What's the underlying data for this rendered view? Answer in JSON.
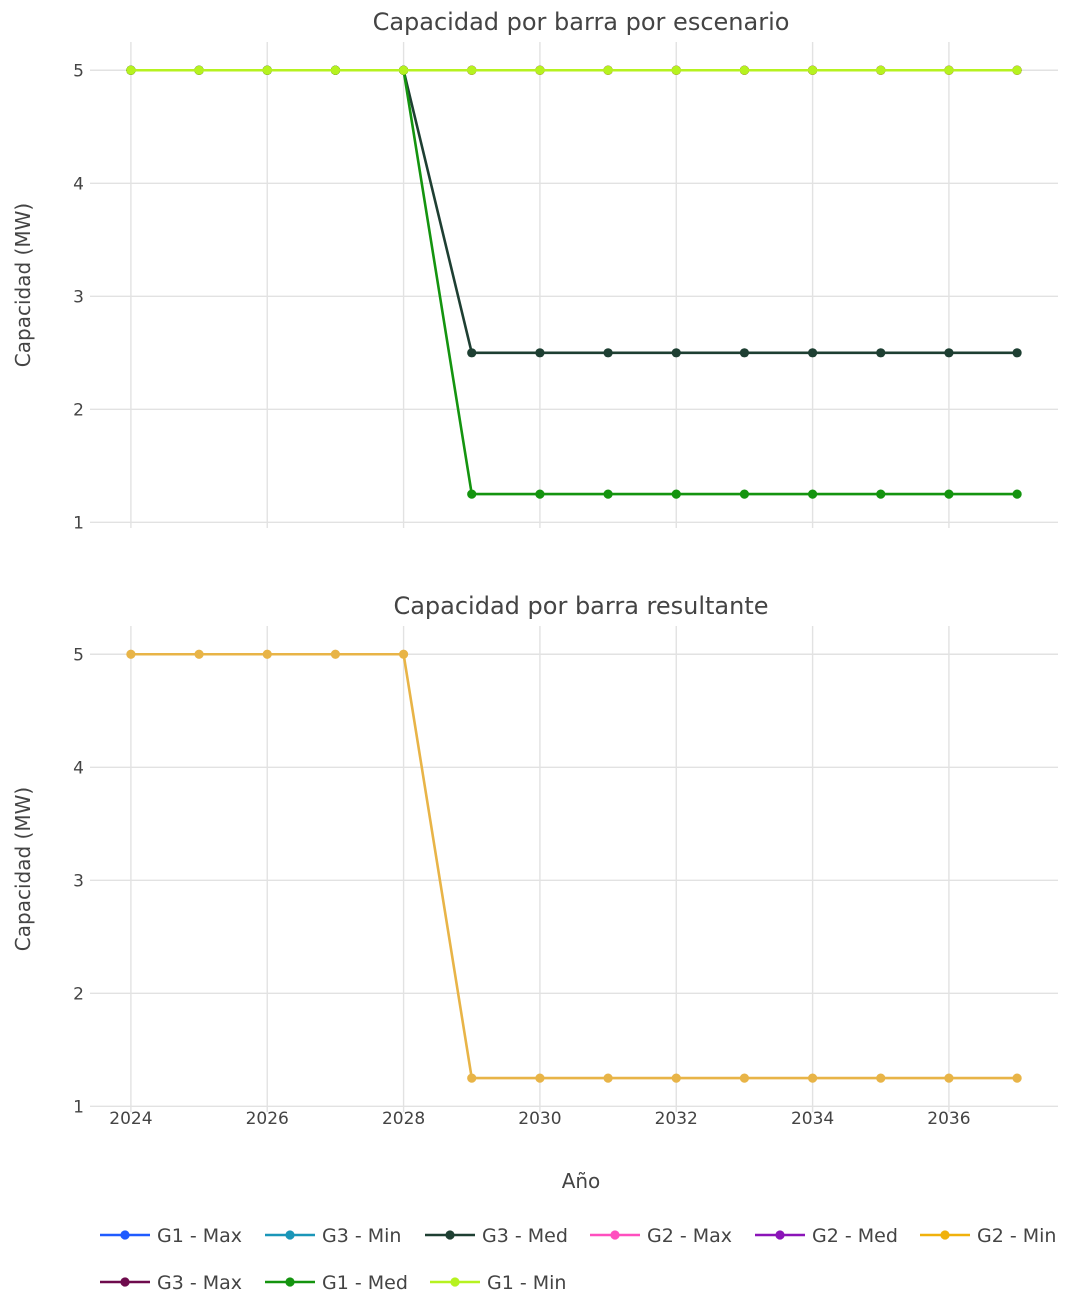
{
  "xlabel": "Año",
  "chart_data": [
    {
      "type": "line",
      "title": "Capacidad por barra por escenario",
      "xlabel": "",
      "ylabel": "Capacidad (MW)",
      "x": [
        2024,
        2025,
        2026,
        2027,
        2028,
        2029,
        2030,
        2031,
        2032,
        2033,
        2034,
        2035,
        2036,
        2037
      ],
      "xlim": [
        2023.4,
        2037.6
      ],
      "ylim": [
        0.95,
        5.25
      ],
      "xticks": [
        2024,
        2026,
        2028,
        2030,
        2032,
        2034,
        2036
      ],
      "yticks": [
        1,
        2,
        3,
        4,
        5
      ],
      "grid": true,
      "series": [
        {
          "name": "G1 - Max",
          "color": "#1f5bff",
          "values": [
            5,
            5,
            5,
            5,
            5,
            5,
            5,
            5,
            5,
            5,
            5,
            5,
            5,
            5
          ]
        },
        {
          "name": "G3 - Min",
          "color": "#1a96b8",
          "values": [
            5,
            5,
            5,
            5,
            5,
            5,
            5,
            5,
            5,
            5,
            5,
            5,
            5,
            5
          ]
        },
        {
          "name": "G2 - Max",
          "color": "#ff4fbf",
          "values": [
            5,
            5,
            5,
            5,
            5,
            5,
            5,
            5,
            5,
            5,
            5,
            5,
            5,
            5
          ]
        },
        {
          "name": "G2 - Med",
          "color": "#8b14b8",
          "values": [
            5,
            5,
            5,
            5,
            5,
            5,
            5,
            5,
            5,
            5,
            5,
            5,
            5,
            5
          ]
        },
        {
          "name": "G2 - Min",
          "color": "#f0b10c",
          "values": [
            5,
            5,
            5,
            5,
            5,
            5,
            5,
            5,
            5,
            5,
            5,
            5,
            5,
            5
          ]
        },
        {
          "name": "G3 - Max",
          "color": "#6e0b4d",
          "values": [
            5,
            5,
            5,
            5,
            5,
            5,
            5,
            5,
            5,
            5,
            5,
            5,
            5,
            5
          ]
        },
        {
          "name": "G3 - Med",
          "color": "#1e3f32",
          "values": [
            5,
            5,
            5,
            5,
            5,
            2.5,
            2.5,
            2.5,
            2.5,
            2.5,
            2.5,
            2.5,
            2.5,
            2.5
          ]
        },
        {
          "name": "G1 - Med",
          "color": "#14940f",
          "values": [
            5,
            5,
            5,
            5,
            5,
            1.25,
            1.25,
            1.25,
            1.25,
            1.25,
            1.25,
            1.25,
            1.25,
            1.25
          ]
        },
        {
          "name": "G1 - Min",
          "color": "#b6f21f",
          "values": [
            5,
            5,
            5,
            5,
            5,
            5,
            5,
            5,
            5,
            5,
            5,
            5,
            5,
            5
          ]
        }
      ]
    },
    {
      "type": "line",
      "title": "Capacidad por barra resultante",
      "xlabel": "Año",
      "ylabel": "Capacidad (MW)",
      "x": [
        2024,
        2025,
        2026,
        2027,
        2028,
        2029,
        2030,
        2031,
        2032,
        2033,
        2034,
        2035,
        2036,
        2037
      ],
      "xlim": [
        2023.4,
        2037.6
      ],
      "ylim": [
        0.95,
        5.25
      ],
      "xticks": [
        2024,
        2026,
        2028,
        2030,
        2032,
        2034,
        2036
      ],
      "yticks": [
        1,
        2,
        3,
        4,
        5
      ],
      "grid": true,
      "series": [
        {
          "name": "",
          "color": "#e8b447",
          "values": [
            5,
            5,
            5,
            5,
            5,
            1.25,
            1.25,
            1.25,
            1.25,
            1.25,
            1.25,
            1.25,
            1.25,
            1.25
          ]
        }
      ]
    }
  ],
  "legend": {
    "placement": "bottom",
    "entries": [
      {
        "name": "G1 - Max",
        "color": "#1f5bff"
      },
      {
        "name": "G3 - Min",
        "color": "#1a96b8"
      },
      {
        "name": "G3 - Med",
        "color": "#1e3f32"
      },
      {
        "name": "G2 - Max",
        "color": "#ff4fbf"
      },
      {
        "name": "G2 - Med",
        "color": "#8b14b8"
      },
      {
        "name": "G2 - Min",
        "color": "#f0b10c"
      },
      {
        "name": "G3 - Max",
        "color": "#6e0b4d"
      },
      {
        "name": "G1 - Med",
        "color": "#14940f"
      },
      {
        "name": "G1 - Min",
        "color": "#b6f21f"
      }
    ]
  }
}
